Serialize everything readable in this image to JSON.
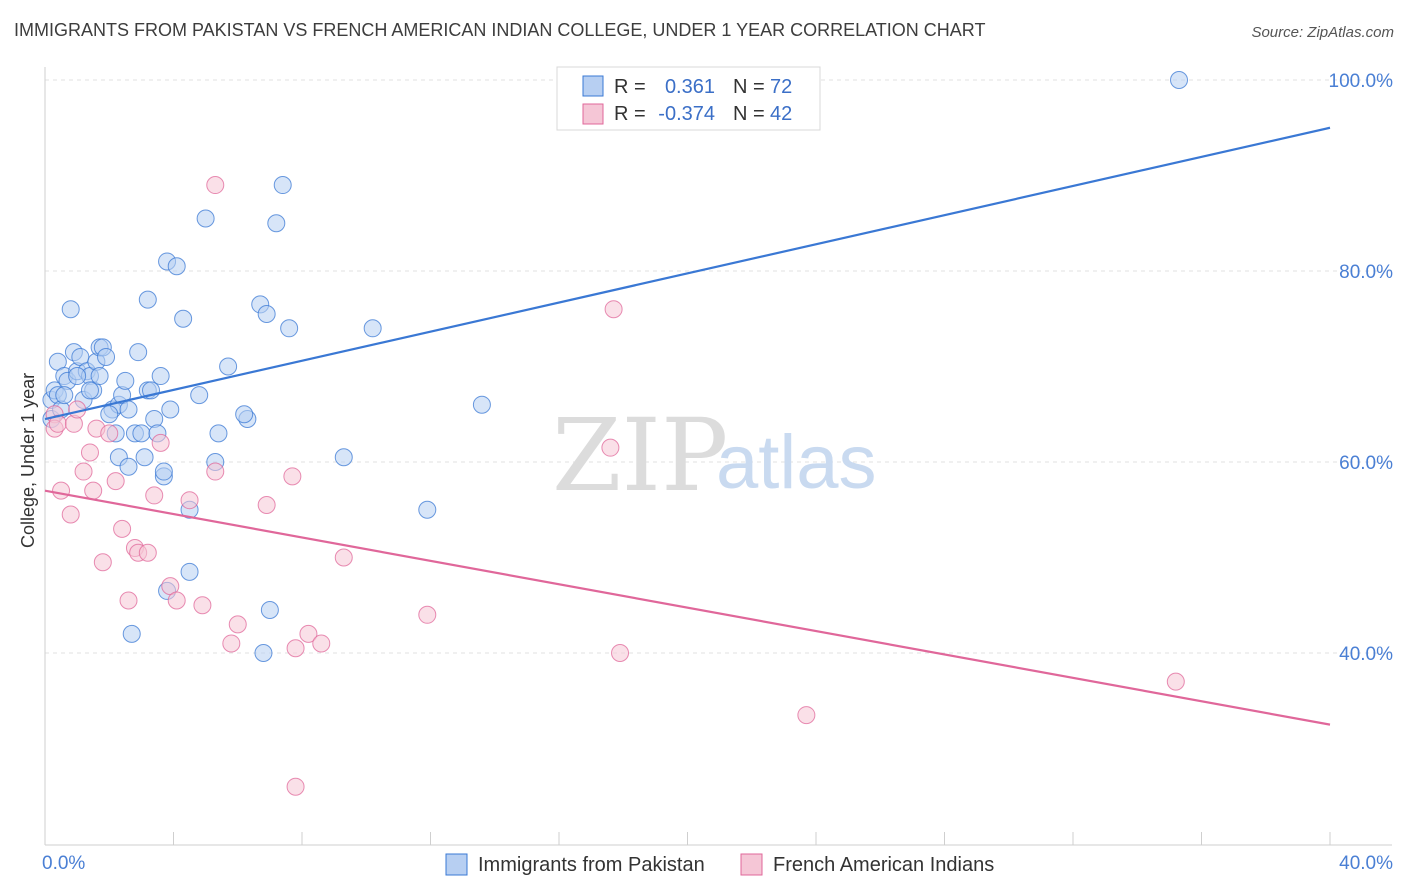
{
  "title": "IMMIGRANTS FROM PAKISTAN VS FRENCH AMERICAN INDIAN COLLEGE, UNDER 1 YEAR CORRELATION CHART",
  "source": "Source: ZipAtlas.com",
  "watermark": {
    "zip": "ZIP",
    "atlas": "atlas"
  },
  "colors": {
    "blue": "#3a78d4",
    "blue_fill": "#b7cff2",
    "pink": "#e0679a",
    "pink_fill": "#f5c6d6",
    "grid": "#e2e2e2"
  },
  "chart_data": {
    "type": "scatter",
    "title": "IMMIGRANTS FROM PAKISTAN VS FRENCH AMERICAN INDIAN COLLEGE, UNDER 1 YEAR CORRELATION CHART",
    "xlabel": "",
    "ylabel": "College, Under 1 year",
    "xlim": [
      0,
      40
    ],
    "ylim": [
      18,
      102
    ],
    "x_tick_labels": [
      {
        "value": 0,
        "label": "0.0%"
      },
      {
        "value": 40,
        "label": "40.0%"
      }
    ],
    "y_tick_labels": [
      {
        "value": 100,
        "label": "100.0%"
      },
      {
        "value": 80,
        "label": "80.0%"
      },
      {
        "value": 60,
        "label": "60.0%"
      },
      {
        "value": 40,
        "label": "40.0%"
      }
    ],
    "x_minor_ticks": [
      4,
      8,
      12,
      16,
      20,
      24,
      28,
      32,
      36,
      40
    ],
    "legend": {
      "rows": [
        {
          "r_label": "R =",
          "r_value": "0.361",
          "n_label": "N =",
          "n_value": "72"
        },
        {
          "r_label": "R =",
          "r_value": "-0.374",
          "n_label": "N =",
          "n_value": "42"
        }
      ]
    },
    "series": [
      {
        "name": "Immigrants from Pakistan",
        "color": "#3a78d4",
        "trendline": {
          "x": [
            0,
            40
          ],
          "y": [
            64.5,
            95
          ]
        },
        "points": [
          [
            0.2,
            64.5
          ],
          [
            0.2,
            66.5
          ],
          [
            0.3,
            67.5
          ],
          [
            0.4,
            70.5
          ],
          [
            0.4,
            67
          ],
          [
            0.5,
            65.5
          ],
          [
            0.6,
            69
          ],
          [
            0.7,
            68.5
          ],
          [
            0.8,
            76
          ],
          [
            0.9,
            71.5
          ],
          [
            1.0,
            69.5
          ],
          [
            1.1,
            71
          ],
          [
            1.2,
            66.5
          ],
          [
            1.3,
            69.5
          ],
          [
            1.4,
            69
          ],
          [
            1.5,
            67.5
          ],
          [
            1.6,
            70.5
          ],
          [
            1.7,
            72
          ],
          [
            1.7,
            69
          ],
          [
            1.8,
            72
          ],
          [
            1.9,
            71
          ],
          [
            2.1,
            65.5
          ],
          [
            2.2,
            63
          ],
          [
            2.3,
            60.5
          ],
          [
            2.3,
            66
          ],
          [
            2.4,
            67
          ],
          [
            2.5,
            68.5
          ],
          [
            2.6,
            65.5
          ],
          [
            2.6,
            59.5
          ],
          [
            2.7,
            42
          ],
          [
            2.8,
            63
          ],
          [
            2.9,
            71.5
          ],
          [
            3.0,
            63
          ],
          [
            3.1,
            60.5
          ],
          [
            3.2,
            67.5
          ],
          [
            3.2,
            77
          ],
          [
            3.3,
            67.5
          ],
          [
            3.4,
            64.5
          ],
          [
            3.5,
            63
          ],
          [
            3.6,
            69
          ],
          [
            3.7,
            58.5
          ],
          [
            3.8,
            81
          ],
          [
            3.8,
            46.5
          ],
          [
            3.9,
            65.5
          ],
          [
            4.1,
            80.5
          ],
          [
            4.3,
            75
          ],
          [
            4.5,
            55
          ],
          [
            4.5,
            48.5
          ],
          [
            4.8,
            67
          ],
          [
            5.0,
            85.5
          ],
          [
            5.3,
            60
          ],
          [
            5.4,
            63
          ],
          [
            5.7,
            70
          ],
          [
            6.3,
            64.5
          ],
          [
            6.7,
            76.5
          ],
          [
            6.8,
            40
          ],
          [
            6.9,
            75.5
          ],
          [
            7.0,
            44.5
          ],
          [
            7.2,
            85
          ],
          [
            7.4,
            89
          ],
          [
            7.6,
            74
          ],
          [
            9.3,
            60.5
          ],
          [
            10.2,
            74
          ],
          [
            11.9,
            55
          ],
          [
            13.6,
            66
          ],
          [
            35.3,
            100
          ],
          [
            1.0,
            69
          ],
          [
            0.6,
            67
          ],
          [
            1.4,
            67.5
          ],
          [
            2.0,
            65
          ],
          [
            3.7,
            59
          ],
          [
            6.2,
            65
          ]
        ]
      },
      {
        "name": "French American Indians",
        "color": "#e0679a",
        "trendline": {
          "x": [
            0,
            40
          ],
          "y": [
            57,
            32.5
          ]
        },
        "points": [
          [
            0.3,
            65
          ],
          [
            0.3,
            63.5
          ],
          [
            0.4,
            64
          ],
          [
            0.5,
            57
          ],
          [
            0.8,
            54.5
          ],
          [
            0.9,
            64
          ],
          [
            1.0,
            65.5
          ],
          [
            1.2,
            59
          ],
          [
            1.4,
            61
          ],
          [
            1.5,
            57
          ],
          [
            1.6,
            63.5
          ],
          [
            1.8,
            49.5
          ],
          [
            2.0,
            63
          ],
          [
            2.2,
            58
          ],
          [
            2.4,
            53
          ],
          [
            2.6,
            45.5
          ],
          [
            2.8,
            51
          ],
          [
            2.9,
            50.5
          ],
          [
            3.2,
            50.5
          ],
          [
            3.4,
            56.5
          ],
          [
            3.6,
            62
          ],
          [
            3.9,
            47
          ],
          [
            4.1,
            45.5
          ],
          [
            4.5,
            56
          ],
          [
            4.9,
            45
          ],
          [
            5.3,
            59
          ],
          [
            5.3,
            89
          ],
          [
            5.8,
            41
          ],
          [
            6.0,
            43
          ],
          [
            6.9,
            55.5
          ],
          [
            7.7,
            58.5
          ],
          [
            7.8,
            26
          ],
          [
            7.8,
            40.5
          ],
          [
            8.2,
            42
          ],
          [
            8.6,
            41
          ],
          [
            9.3,
            50
          ],
          [
            11.9,
            44
          ],
          [
            17.6,
            61.5
          ],
          [
            17.7,
            76
          ],
          [
            17.9,
            40
          ],
          [
            23.7,
            33.5
          ],
          [
            35.2,
            37
          ]
        ]
      }
    ]
  }
}
